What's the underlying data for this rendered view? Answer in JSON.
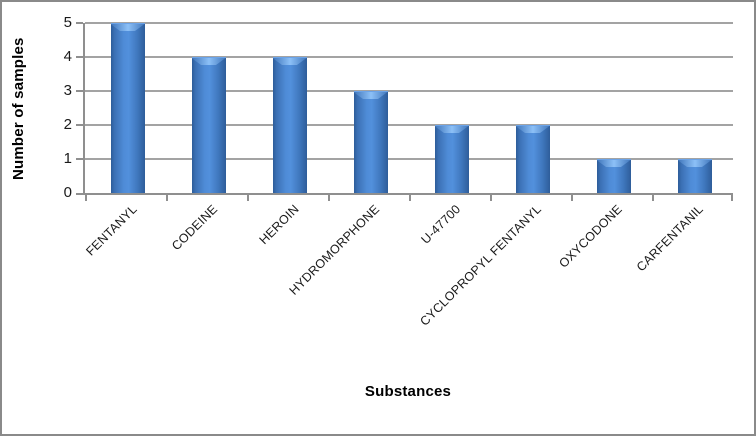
{
  "chart_data": {
    "type": "bar",
    "categories": [
      "FENTANYL",
      "CODEINE",
      "HEROIN",
      "HYDROMORPHONE",
      "U-47700",
      "CYCLOPROPYL FENTANYL",
      "OXYCODONE",
      "CARFENTANIL"
    ],
    "values": [
      5,
      4,
      4,
      3,
      2,
      2,
      1,
      1
    ],
    "title": "",
    "xlabel": "Substances",
    "ylabel": "Number of samples",
    "ylim": [
      0,
      5
    ],
    "ytick_step": 1,
    "yticks": [
      0,
      1,
      2,
      3,
      4,
      5
    ],
    "grid": true,
    "legend_position": "none",
    "bar_color": "#4f8cd7",
    "bar_edge_color": "#2d5c99",
    "gridline_color": "#a3a3a3",
    "axis_color": "#8f8f8f",
    "frame_border_color": "#8a8a8a"
  }
}
